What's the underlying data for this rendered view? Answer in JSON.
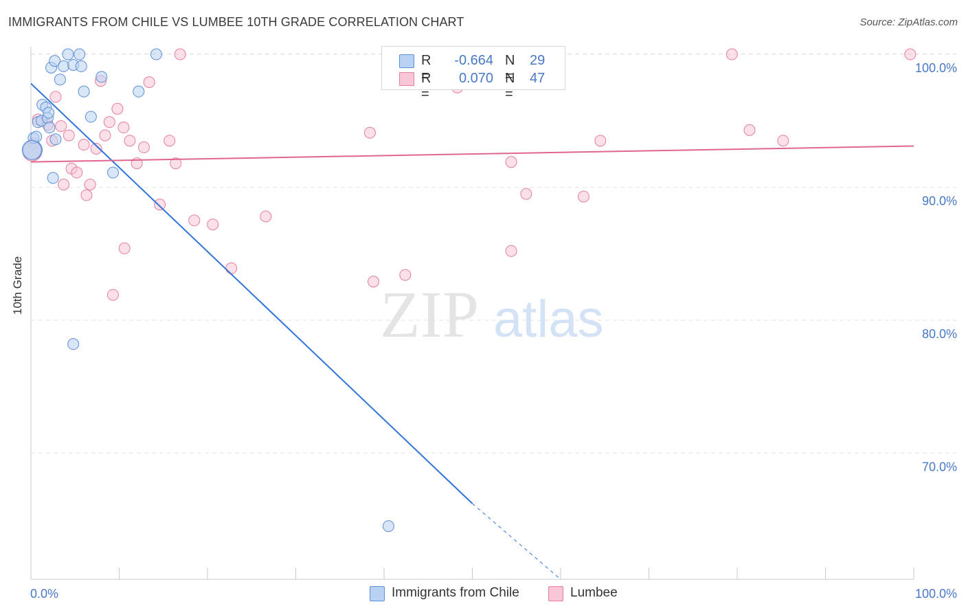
{
  "header": {
    "title": "IMMIGRANTS FROM CHILE VS LUMBEE 10TH GRADE CORRELATION CHART",
    "source": "Source: ZipAtlas.com"
  },
  "watermark": {
    "zip": "ZIP",
    "atlas": "atlas"
  },
  "legend": {
    "rows": [
      {
        "r_label": "R =",
        "r_value": "-0.664",
        "n_label": "N =",
        "n_value": "29"
      },
      {
        "r_label": "R =",
        "r_value": "0.070",
        "n_label": "N =",
        "n_value": "47"
      }
    ]
  },
  "bottom_legend": {
    "series1": "Immigrants from Chile",
    "series2": "Lumbee"
  },
  "chart_data": {
    "type": "scatter",
    "title": "IMMIGRANTS FROM CHILE VS LUMBEE 10TH GRADE CORRELATION CHART",
    "xlabel": "",
    "ylabel": "10th Grade",
    "xlim": [
      0,
      100
    ],
    "ylim": [
      60.5,
      101.5
    ],
    "x_tick_labels": [
      "0.0%",
      "100.0%"
    ],
    "y_ticks": [
      {
        "value": 70,
        "label": "70.0%"
      },
      {
        "value": 80,
        "label": "80.0%"
      },
      {
        "value": 90,
        "label": "90.0%"
      },
      {
        "value": 100,
        "label": "100.0%"
      }
    ],
    "grid": true,
    "colors": {
      "chile": "#5b8fd6",
      "chile_fill": "#b9d2f3",
      "lumbee": "#e57ea0",
      "lumbee_fill": "#f8c6d6"
    },
    "series": [
      {
        "name": "Immigrants from Chile",
        "r": -0.664,
        "n": 29,
        "trend": {
          "x0": 0,
          "y0": 97.8,
          "x1": 50,
          "y1": 66.2,
          "dashed_to_x": 60,
          "dashed_to_y": 60.5
        },
        "points": [
          [
            0.2,
            92.8
          ],
          [
            0.3,
            93.7
          ],
          [
            0.6,
            93.8
          ],
          [
            0.8,
            94.9
          ],
          [
            1.2,
            95.0
          ],
          [
            1.3,
            96.2
          ],
          [
            1.7,
            96.0
          ],
          [
            1.9,
            95.2
          ],
          [
            2.0,
            95.6
          ],
          [
            2.1,
            94.5
          ],
          [
            2.3,
            99.0
          ],
          [
            2.7,
            99.5
          ],
          [
            2.8,
            93.6
          ],
          [
            3.3,
            98.1
          ],
          [
            3.7,
            99.1
          ],
          [
            4.2,
            100.0
          ],
          [
            4.8,
            99.2
          ],
          [
            5.5,
            100.0
          ],
          [
            5.7,
            99.1
          ],
          [
            6.0,
            97.2
          ],
          [
            6.8,
            95.3
          ],
          [
            8.0,
            98.3
          ],
          [
            9.3,
            91.1
          ],
          [
            12.2,
            97.2
          ],
          [
            14.2,
            100.0
          ],
          [
            2.5,
            90.7
          ],
          [
            4.8,
            78.2
          ],
          [
            40.5,
            64.5
          ],
          [
            0.1,
            92.8
          ]
        ]
      },
      {
        "name": "Lumbee",
        "r": 0.07,
        "n": 47,
        "trend": {
          "x0": 0,
          "y0": 91.9,
          "x1": 100,
          "y1": 93.1
        },
        "points": [
          [
            0.3,
            93.3
          ],
          [
            0.8,
            95.1
          ],
          [
            1.9,
            94.7
          ],
          [
            2.4,
            93.5
          ],
          [
            2.8,
            96.8
          ],
          [
            3.4,
            94.6
          ],
          [
            3.7,
            90.2
          ],
          [
            4.3,
            93.9
          ],
          [
            4.6,
            91.4
          ],
          [
            5.2,
            91.1
          ],
          [
            6.0,
            93.2
          ],
          [
            6.3,
            89.4
          ],
          [
            6.7,
            90.2
          ],
          [
            7.4,
            92.9
          ],
          [
            7.9,
            98.0
          ],
          [
            8.4,
            93.9
          ],
          [
            8.9,
            94.9
          ],
          [
            9.3,
            81.9
          ],
          [
            9.8,
            95.9
          ],
          [
            10.5,
            94.5
          ],
          [
            10.6,
            85.4
          ],
          [
            11.2,
            93.5
          ],
          [
            12.0,
            91.8
          ],
          [
            12.8,
            93.0
          ],
          [
            13.4,
            97.9
          ],
          [
            14.6,
            88.7
          ],
          [
            15.7,
            93.5
          ],
          [
            16.4,
            91.8
          ],
          [
            16.9,
            100.0
          ],
          [
            18.5,
            87.5
          ],
          [
            20.6,
            87.2
          ],
          [
            22.7,
            83.9
          ],
          [
            26.6,
            87.8
          ],
          [
            38.4,
            94.1
          ],
          [
            38.8,
            82.9
          ],
          [
            42.4,
            83.4
          ],
          [
            48.3,
            97.5
          ],
          [
            54.4,
            91.9
          ],
          [
            54.4,
            85.2
          ],
          [
            56.1,
            89.5
          ],
          [
            62.6,
            89.3
          ],
          [
            64.5,
            93.5
          ],
          [
            79.4,
            100.0
          ],
          [
            81.4,
            94.3
          ],
          [
            85.2,
            93.5
          ],
          [
            99.6,
            100.0
          ],
          [
            0.15,
            92.7
          ]
        ]
      }
    ]
  }
}
